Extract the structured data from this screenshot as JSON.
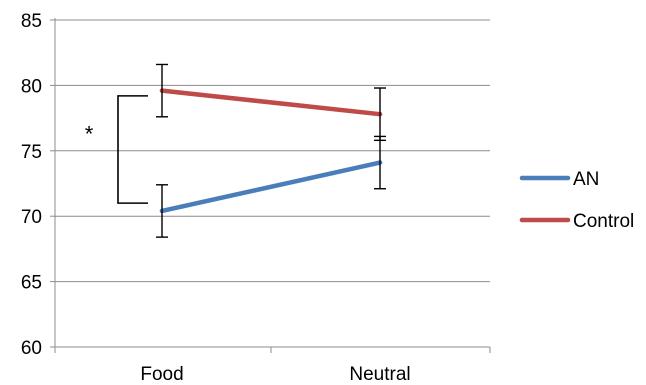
{
  "chart_data": {
    "type": "line",
    "title": "",
    "xlabel": "",
    "ylabel": "",
    "categories": [
      "Food",
      "Neutral"
    ],
    "ylim": [
      60,
      85
    ],
    "yticks": [
      60,
      65,
      70,
      75,
      80,
      85
    ],
    "grid": true,
    "legend_position": "right",
    "series": [
      {
        "name": "AN",
        "color": "#4a7ebb",
        "values": [
          70.4,
          74.1
        ],
        "error": [
          2.0,
          2.0
        ]
      },
      {
        "name": "Control",
        "color": "#be4b48",
        "values": [
          79.6,
          77.8
        ],
        "error": [
          2.0,
          2.0
        ]
      }
    ],
    "annotations": [
      {
        "text": "*",
        "type": "significance-bracket",
        "category": "Food",
        "from": 79.2,
        "to": 71.0
      }
    ]
  }
}
